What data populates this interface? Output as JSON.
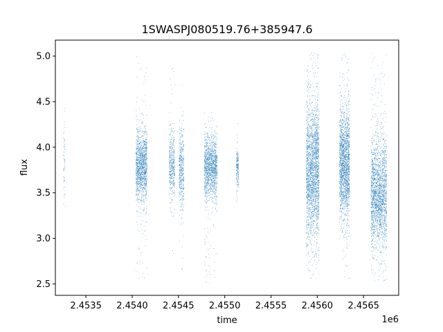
{
  "chart_data": {
    "type": "scatter",
    "title": "1SWASPJ080519.76+385947.6",
    "xlabel": "time",
    "ylabel": "flux",
    "x_offset_label": "1e6",
    "xlim": [
      2453170,
      2456880
    ],
    "ylim": [
      2.375,
      5.175
    ],
    "x_ticks": [
      2453500,
      2454000,
      2454500,
      2455000,
      2455500,
      2456000,
      2456500
    ],
    "x_tick_labels": [
      "2.4535",
      "2.4540",
      "2.4545",
      "2.4550",
      "2.4555",
      "2.4560",
      "2.4565"
    ],
    "y_ticks": [
      2.5,
      3.0,
      3.5,
      4.0,
      4.5,
      5.0
    ],
    "y_tick_labels": [
      "2.5",
      "3.0",
      "3.5",
      "4.0",
      "4.5",
      "5.0"
    ],
    "grid": false,
    "marker_color": "#1f77b4",
    "clusters": [
      {
        "x_start": 2453255,
        "x_end": 2453275,
        "y_center": 3.8,
        "y_spread": 0.22,
        "y_min": 3.15,
        "y_max": 4.48,
        "points": 60
      },
      {
        "x_start": 2454040,
        "x_end": 2454160,
        "y_center": 3.8,
        "y_spread": 0.2,
        "y_min": 2.55,
        "y_max": 5.0,
        "points": 1400
      },
      {
        "x_start": 2454400,
        "x_end": 2454460,
        "y_center": 3.8,
        "y_spread": 0.18,
        "y_min": 2.6,
        "y_max": 5.03,
        "points": 450
      },
      {
        "x_start": 2454505,
        "x_end": 2454560,
        "y_center": 3.75,
        "y_spread": 0.22,
        "y_min": 2.65,
        "y_max": 4.85,
        "points": 450
      },
      {
        "x_start": 2454780,
        "x_end": 2454920,
        "y_center": 3.78,
        "y_spread": 0.17,
        "y_min": 2.5,
        "y_max": 4.4,
        "points": 1400
      },
      {
        "x_start": 2455125,
        "x_end": 2455150,
        "y_center": 3.78,
        "y_spread": 0.12,
        "y_min": 3.25,
        "y_max": 4.41,
        "points": 180
      },
      {
        "x_start": 2455880,
        "x_end": 2456020,
        "y_center": 3.75,
        "y_spread": 0.38,
        "y_min": 2.55,
        "y_max": 5.05,
        "points": 2400
      },
      {
        "x_start": 2456240,
        "x_end": 2456350,
        "y_center": 3.82,
        "y_spread": 0.3,
        "y_min": 2.55,
        "y_max": 5.03,
        "points": 2000
      },
      {
        "x_start": 2456580,
        "x_end": 2456750,
        "y_center": 3.5,
        "y_spread": 0.3,
        "y_min": 2.5,
        "y_max": 5.03,
        "points": 2200
      }
    ]
  }
}
